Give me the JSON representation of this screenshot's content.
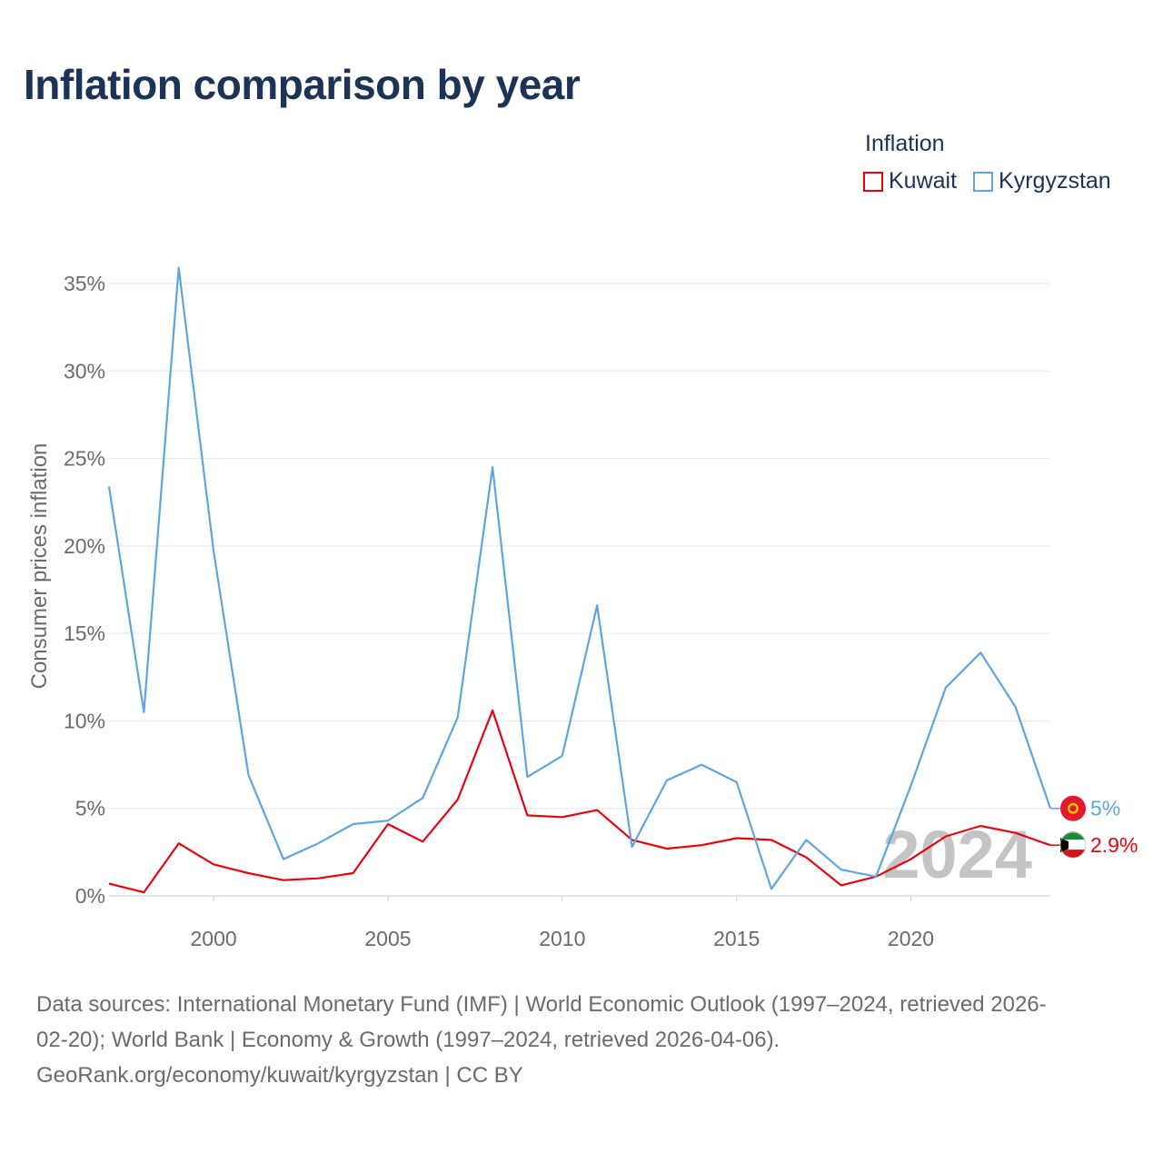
{
  "title": "Inflation comparison by year",
  "legend": {
    "title": "Inflation",
    "items": [
      {
        "label": "Kuwait",
        "color": "#e0060f"
      },
      {
        "label": "Kyrgyzstan",
        "color": "#5da5e0"
      }
    ]
  },
  "chart_data": {
    "type": "line",
    "title": "Inflation comparison by year",
    "xlabel": "",
    "ylabel": "Consumer prices inflation",
    "xlim": [
      1997,
      2024
    ],
    "ylim": [
      0,
      35
    ],
    "x_ticks": [
      2000,
      2005,
      2010,
      2015,
      2020
    ],
    "y_ticks": [
      0,
      5,
      10,
      15,
      20,
      25,
      30,
      35
    ],
    "y_tick_labels": [
      "0%",
      "5%",
      "10%",
      "15%",
      "20%",
      "25%",
      "30%",
      "35%"
    ],
    "x": [
      1997,
      1998,
      1999,
      2000,
      2001,
      2002,
      2003,
      2004,
      2005,
      2006,
      2007,
      2008,
      2009,
      2010,
      2011,
      2012,
      2013,
      2014,
      2015,
      2016,
      2017,
      2018,
      2019,
      2020,
      2021,
      2022,
      2023,
      2024
    ],
    "series": [
      {
        "name": "Kuwait",
        "color": "#e0060f",
        "end_label": "2.9%",
        "values": [
          0.7,
          0.2,
          3.0,
          1.8,
          1.3,
          0.9,
          1.0,
          1.3,
          4.1,
          3.1,
          5.5,
          10.6,
          4.6,
          4.5,
          4.9,
          3.2,
          2.7,
          2.9,
          3.3,
          3.2,
          2.2,
          0.6,
          1.1,
          2.1,
          3.4,
          4.0,
          3.6,
          2.9
        ]
      },
      {
        "name": "Kyrgyzstan",
        "color": "#5da5e0",
        "end_label": "5%",
        "values": [
          23.4,
          10.5,
          35.9,
          19.7,
          6.9,
          2.1,
          3.0,
          4.1,
          4.3,
          5.6,
          10.2,
          24.5,
          6.8,
          8.0,
          16.6,
          2.8,
          6.6,
          7.5,
          6.5,
          0.4,
          3.2,
          1.5,
          1.1,
          6.3,
          11.9,
          13.9,
          10.8,
          5.0
        ]
      }
    ],
    "year_watermark": "2024",
    "grid": true
  },
  "footer": {
    "line1": "Data sources: International Monetary Fund (IMF) | World Economic Outlook (1997–2024, retrieved 2026-",
    "line2": "02-20); World Bank | Economy & Growth (1997–2024, retrieved 2026-04-06).",
    "line3": "GeoRank.org/economy/kuwait/kyrgyzstan | CC BY"
  }
}
